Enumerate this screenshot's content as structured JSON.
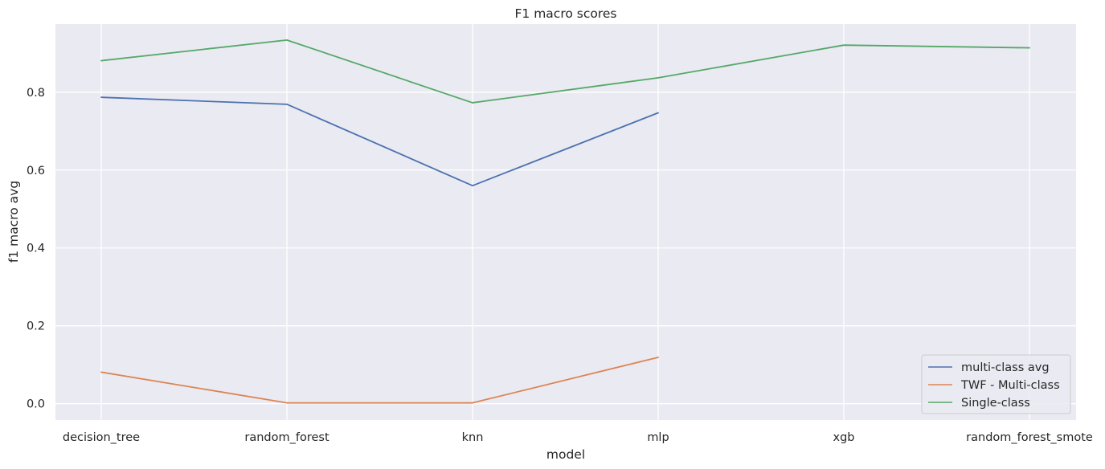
{
  "chart_data": {
    "type": "line",
    "title": "F1 macro scores",
    "xlabel": "model",
    "ylabel": "f1 macro avg",
    "categories": [
      "decision_tree",
      "random_forest",
      "knn",
      "mlp",
      "xgb",
      "random_forest_smote"
    ],
    "ylim": [
      -0.042,
      0.975
    ],
    "yticks": [
      0.0,
      0.2,
      0.4,
      0.6,
      0.8
    ],
    "ytick_labels": [
      "0.0",
      "0.2",
      "0.4",
      "0.6",
      "0.8"
    ],
    "grid": true,
    "legend_position": "lower-right",
    "background": "#eaeaf2",
    "series": [
      {
        "name": "multi-class avg",
        "color": "#4c72b0",
        "values": [
          0.787,
          0.769,
          0.56,
          0.747,
          null,
          null
        ]
      },
      {
        "name": "TWF - Multi-class",
        "color": "#dd8452",
        "values": [
          0.081,
          0.002,
          0.002,
          0.119,
          null,
          null
        ]
      },
      {
        "name": "Single-class",
        "color": "#55a868",
        "values": [
          0.881,
          0.934,
          0.773,
          0.837,
          0.921,
          0.914
        ]
      }
    ]
  }
}
